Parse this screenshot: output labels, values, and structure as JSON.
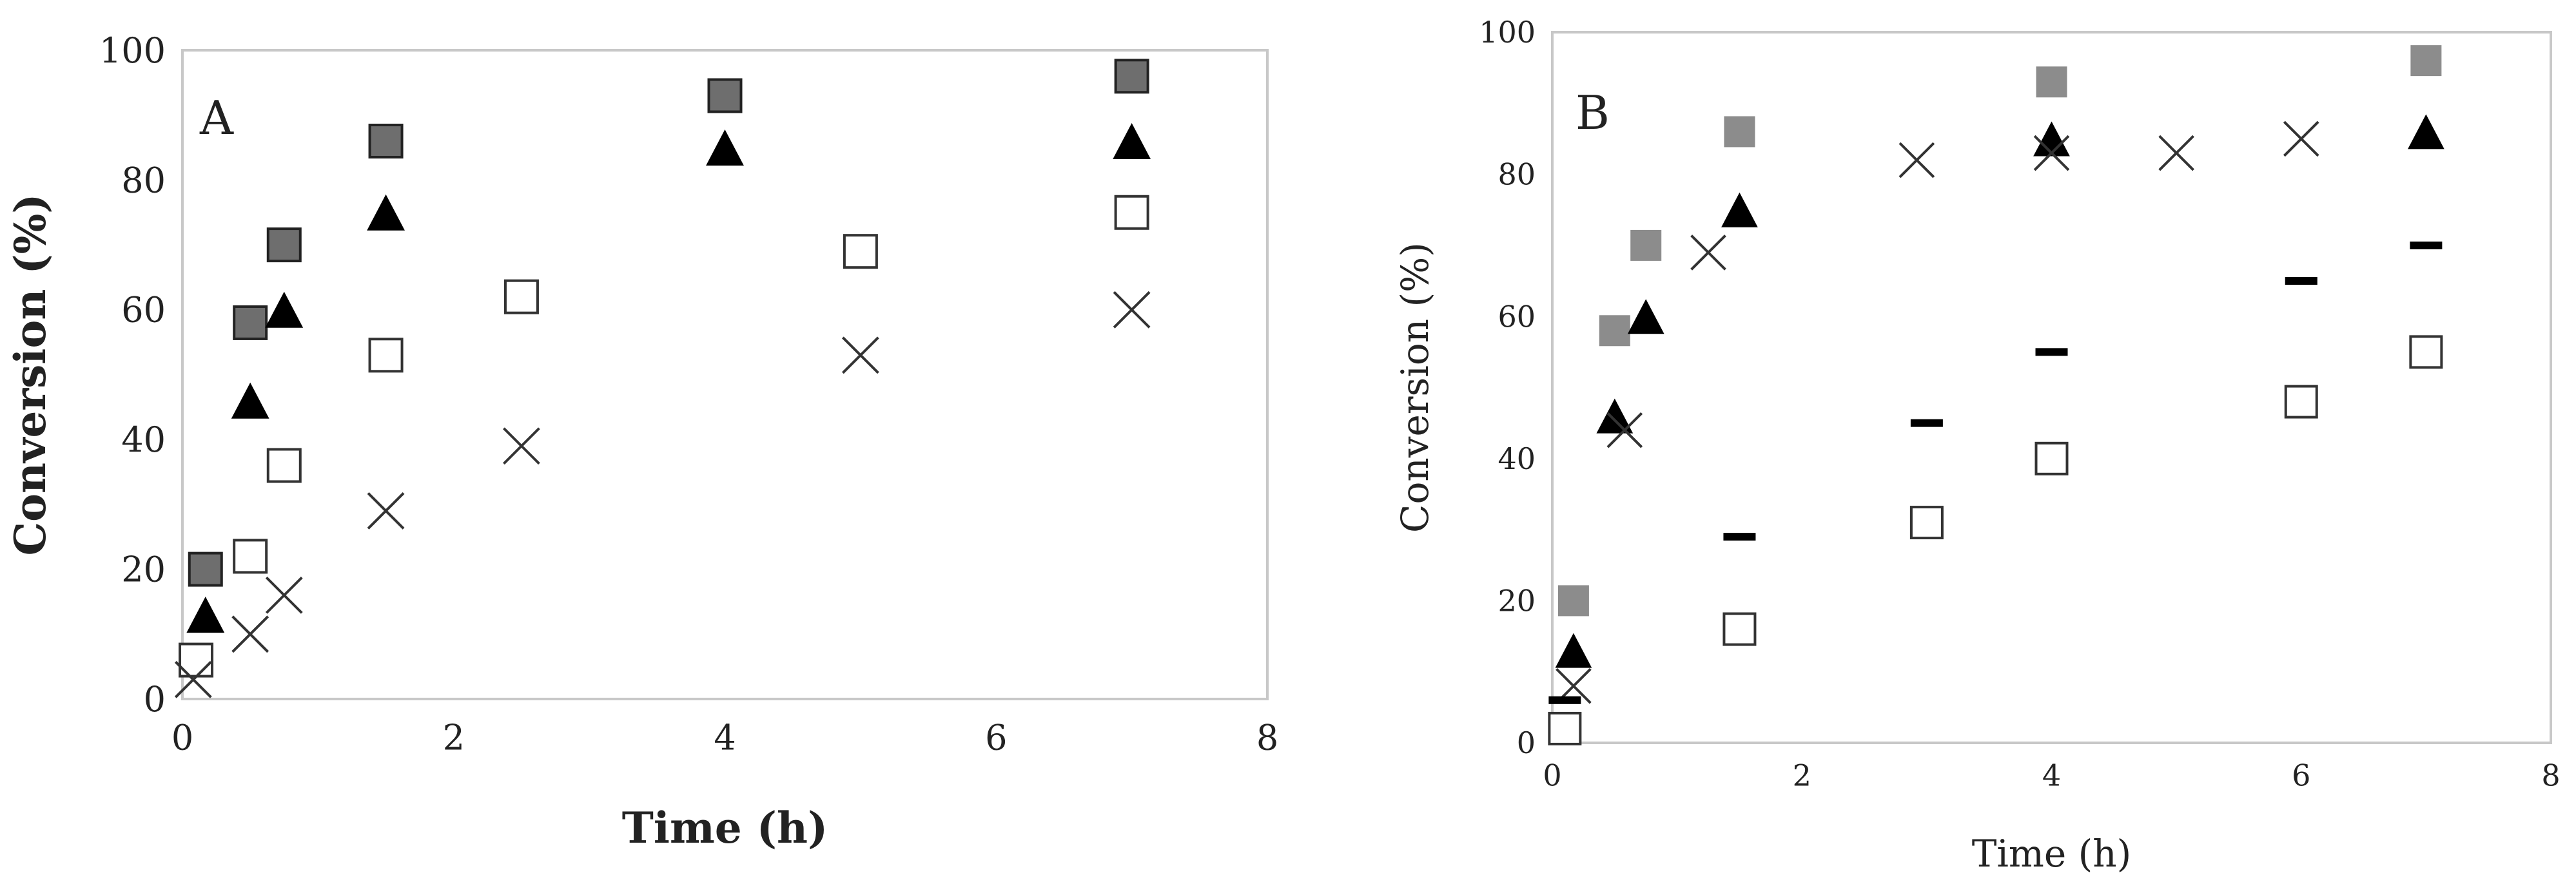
{
  "chart_data": [
    {
      "type": "scatter",
      "panel_label": "A",
      "xlabel": "Time (h)",
      "ylabel": "Conversion (%)",
      "xlim": [
        0,
        8
      ],
      "ylim": [
        0,
        100
      ],
      "xticks": [
        "0",
        "2",
        "4",
        "6",
        "8"
      ],
      "yticks": [
        "0",
        "20",
        "40",
        "60",
        "80",
        "100"
      ],
      "grid": false,
      "legend": "none",
      "series": [
        {
          "marker": "square-filled",
          "color": "#6e6e6e",
          "x": [
            0.17,
            0.5,
            0.75,
            1.5,
            4,
            7
          ],
          "y": [
            20,
            58,
            70,
            86,
            93,
            96
          ]
        },
        {
          "marker": "triangle",
          "color": "#000000",
          "x": [
            0.17,
            0.5,
            0.75,
            1.5,
            4,
            7
          ],
          "y": [
            13,
            46,
            60,
            75,
            85,
            86
          ]
        },
        {
          "marker": "square-open",
          "color": "#333333",
          "x": [
            0.1,
            0.5,
            0.75,
            1.5,
            2.5,
            5,
            7
          ],
          "y": [
            6,
            22,
            36,
            53,
            62,
            69,
            75
          ]
        },
        {
          "marker": "cross",
          "color": "#333333",
          "x": [
            0.08,
            0.5,
            0.75,
            1.5,
            2.5,
            5,
            7
          ],
          "y": [
            3,
            10,
            16,
            29,
            39,
            53,
            60
          ]
        }
      ]
    },
    {
      "type": "scatter",
      "panel_label": "B",
      "xlabel": "Time (h)",
      "ylabel": "Conversion (%)",
      "xlim": [
        0,
        8
      ],
      "ylim": [
        0,
        100
      ],
      "xticks": [
        "0",
        "2",
        "4",
        "6",
        "8"
      ],
      "yticks": [
        "0",
        "20",
        "40",
        "60",
        "80",
        "100"
      ],
      "grid": false,
      "legend": "none",
      "series": [
        {
          "marker": "square-filled",
          "color": "#8c8c8c",
          "x": [
            0.17,
            0.5,
            0.75,
            1.5,
            4,
            7
          ],
          "y": [
            20,
            58,
            70,
            86,
            93,
            96
          ]
        },
        {
          "marker": "triangle",
          "color": "#000000",
          "x": [
            0.17,
            0.5,
            0.75,
            1.5,
            4,
            7
          ],
          "y": [
            13,
            46,
            60,
            75,
            85,
            86
          ]
        },
        {
          "marker": "cross",
          "color": "#333333",
          "x": [
            0.17,
            0.58,
            1.25,
            2.92,
            4,
            5,
            6
          ],
          "y": [
            8,
            44,
            69,
            82,
            83,
            83,
            85
          ]
        },
        {
          "marker": "dash",
          "color": "#000000",
          "x": [
            0.1,
            1.5,
            3,
            4,
            6,
            7
          ],
          "y": [
            6,
            29,
            45,
            55,
            65,
            70
          ]
        },
        {
          "marker": "square-open",
          "color": "#333333",
          "x": [
            0.1,
            1.5,
            3,
            4,
            6,
            7
          ],
          "y": [
            2,
            16,
            31,
            40,
            48,
            55
          ]
        }
      ]
    }
  ]
}
